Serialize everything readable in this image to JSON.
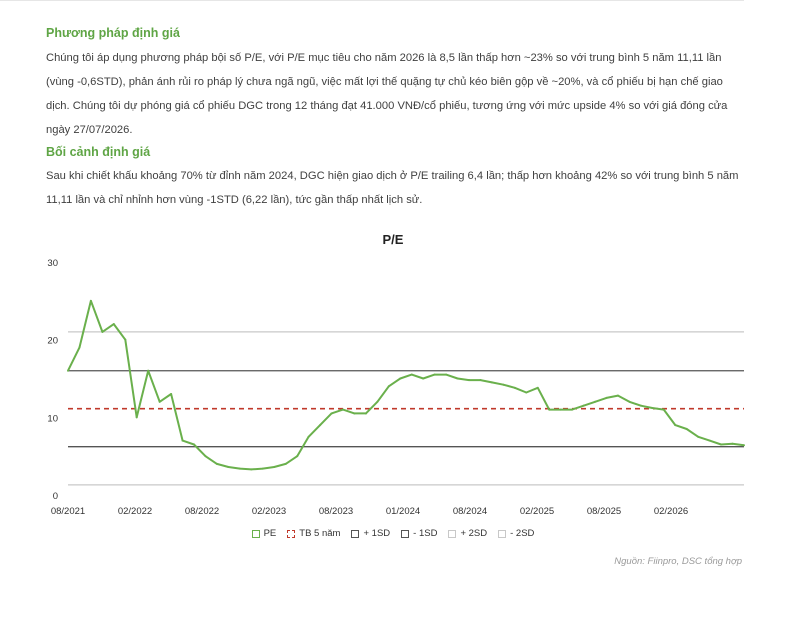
{
  "section1": {
    "heading": "Phương pháp định giá",
    "paragraph": "Chúng tôi áp dụng phương pháp bội số P/E, với P/E mục tiêu cho năm 2026 là 8,5 lần thấp hơn ~23% so với trung bình 5 năm 11,11 lần (vùng -0,6STD), phản ánh rủi ro pháp lý chưa ngã ngũ, việc mất lợi thế quặng tự chủ kéo biên gộp về ~20%, và cổ phiếu bị hạn chế giao dịch. Chúng tôi dự phóng giá cổ phiếu DGC trong 12 tháng đạt 41.000 VNĐ/cổ phiếu, tương ứng với mức upside 4% so với giá đóng cửa ngày 27/07/2026."
  },
  "section2": {
    "heading": "Bối cảnh định giá",
    "paragraph": "Sau khi chiết khấu khoảng 70% từ đỉnh năm 2024, DGC hiện giao dịch ở P/E trailing 6,4 lần; thấp hơn khoảng 42% so với trung bình 5 năm 11,11 lần và chỉ nhỉnh hơn vùng -1STD (6,22 lần), tức gần thấp nhất lịch sử."
  },
  "chart_data": {
    "type": "line",
    "title": "P/E",
    "ylim": [
      0,
      30
    ],
    "yticks": [
      "0",
      "10",
      "20",
      "30"
    ],
    "x_tick_labels": [
      "08/2021",
      "02/2022",
      "08/2022",
      "02/2023",
      "08/2023",
      "01/2024",
      "08/2024",
      "02/2025",
      "08/2025",
      "02/2026"
    ],
    "grid": false,
    "legend_position": "bottom",
    "series": [
      {
        "name": "PE",
        "color": "#6ab04c",
        "style": "solid",
        "x": [
          "08/2021",
          "09/2021",
          "10/2021",
          "11/2021",
          "12/2021",
          "01/2022",
          "02/2022",
          "03/2022",
          "04/2022",
          "05/2022",
          "06/2022",
          "07/2022",
          "08/2022",
          "09/2022",
          "10/2022",
          "11/2022",
          "12/2022",
          "01/2023",
          "02/2023",
          "03/2023",
          "04/2023",
          "05/2023",
          "06/2023",
          "07/2023",
          "08/2023",
          "09/2023",
          "10/2023",
          "11/2023",
          "12/2023",
          "01/2024",
          "02/2024",
          "03/2024",
          "04/2024",
          "05/2024",
          "06/2024",
          "07/2024",
          "08/2024",
          "09/2024",
          "10/2024",
          "11/2024",
          "12/2024",
          "01/2025",
          "02/2025",
          "03/2025",
          "04/2025",
          "05/2025",
          "06/2025",
          "07/2025",
          "08/2025",
          "09/2025",
          "10/2025",
          "11/2025",
          "12/2025",
          "01/2026",
          "02/2026",
          "03/2026",
          "04/2026",
          "05/2026",
          "06/2026",
          "07/2026"
        ],
        "values": [
          16,
          19,
          25,
          21,
          22,
          20,
          10,
          16,
          12,
          13,
          7,
          6.5,
          5,
          4,
          3.6,
          3.4,
          3.3,
          3.4,
          3.6,
          4,
          5,
          7.5,
          9,
          10.5,
          11,
          10.5,
          10.5,
          12,
          14,
          15,
          15.5,
          15,
          15.5,
          15.5,
          15,
          14.8,
          14.8,
          14.5,
          14.2,
          13.8,
          13.2,
          13.8,
          11,
          11,
          11,
          11.5,
          12,
          12.5,
          12.8,
          12,
          11.5,
          11.2,
          11,
          9,
          8.5,
          7.5,
          7,
          6.5,
          6.6,
          6.4
        ]
      },
      {
        "name": "TB 5 năm",
        "color": "#c0392b",
        "style": "dashed",
        "value": 11.11
      },
      {
        "name": "+ 1SD",
        "color": "#555555",
        "style": "solid",
        "value": 16
      },
      {
        "name": "- 1SD",
        "color": "#555555",
        "style": "solid",
        "value": 6.22
      },
      {
        "name": "+ 2SD",
        "color": "#c8c8c8",
        "style": "solid",
        "value": 21
      },
      {
        "name": "- 2SD",
        "color": "#c8c8c8",
        "style": "solid",
        "value": 1.3
      }
    ]
  },
  "source_note": "Nguồn: Fiinpro, DSC tổng hợp"
}
